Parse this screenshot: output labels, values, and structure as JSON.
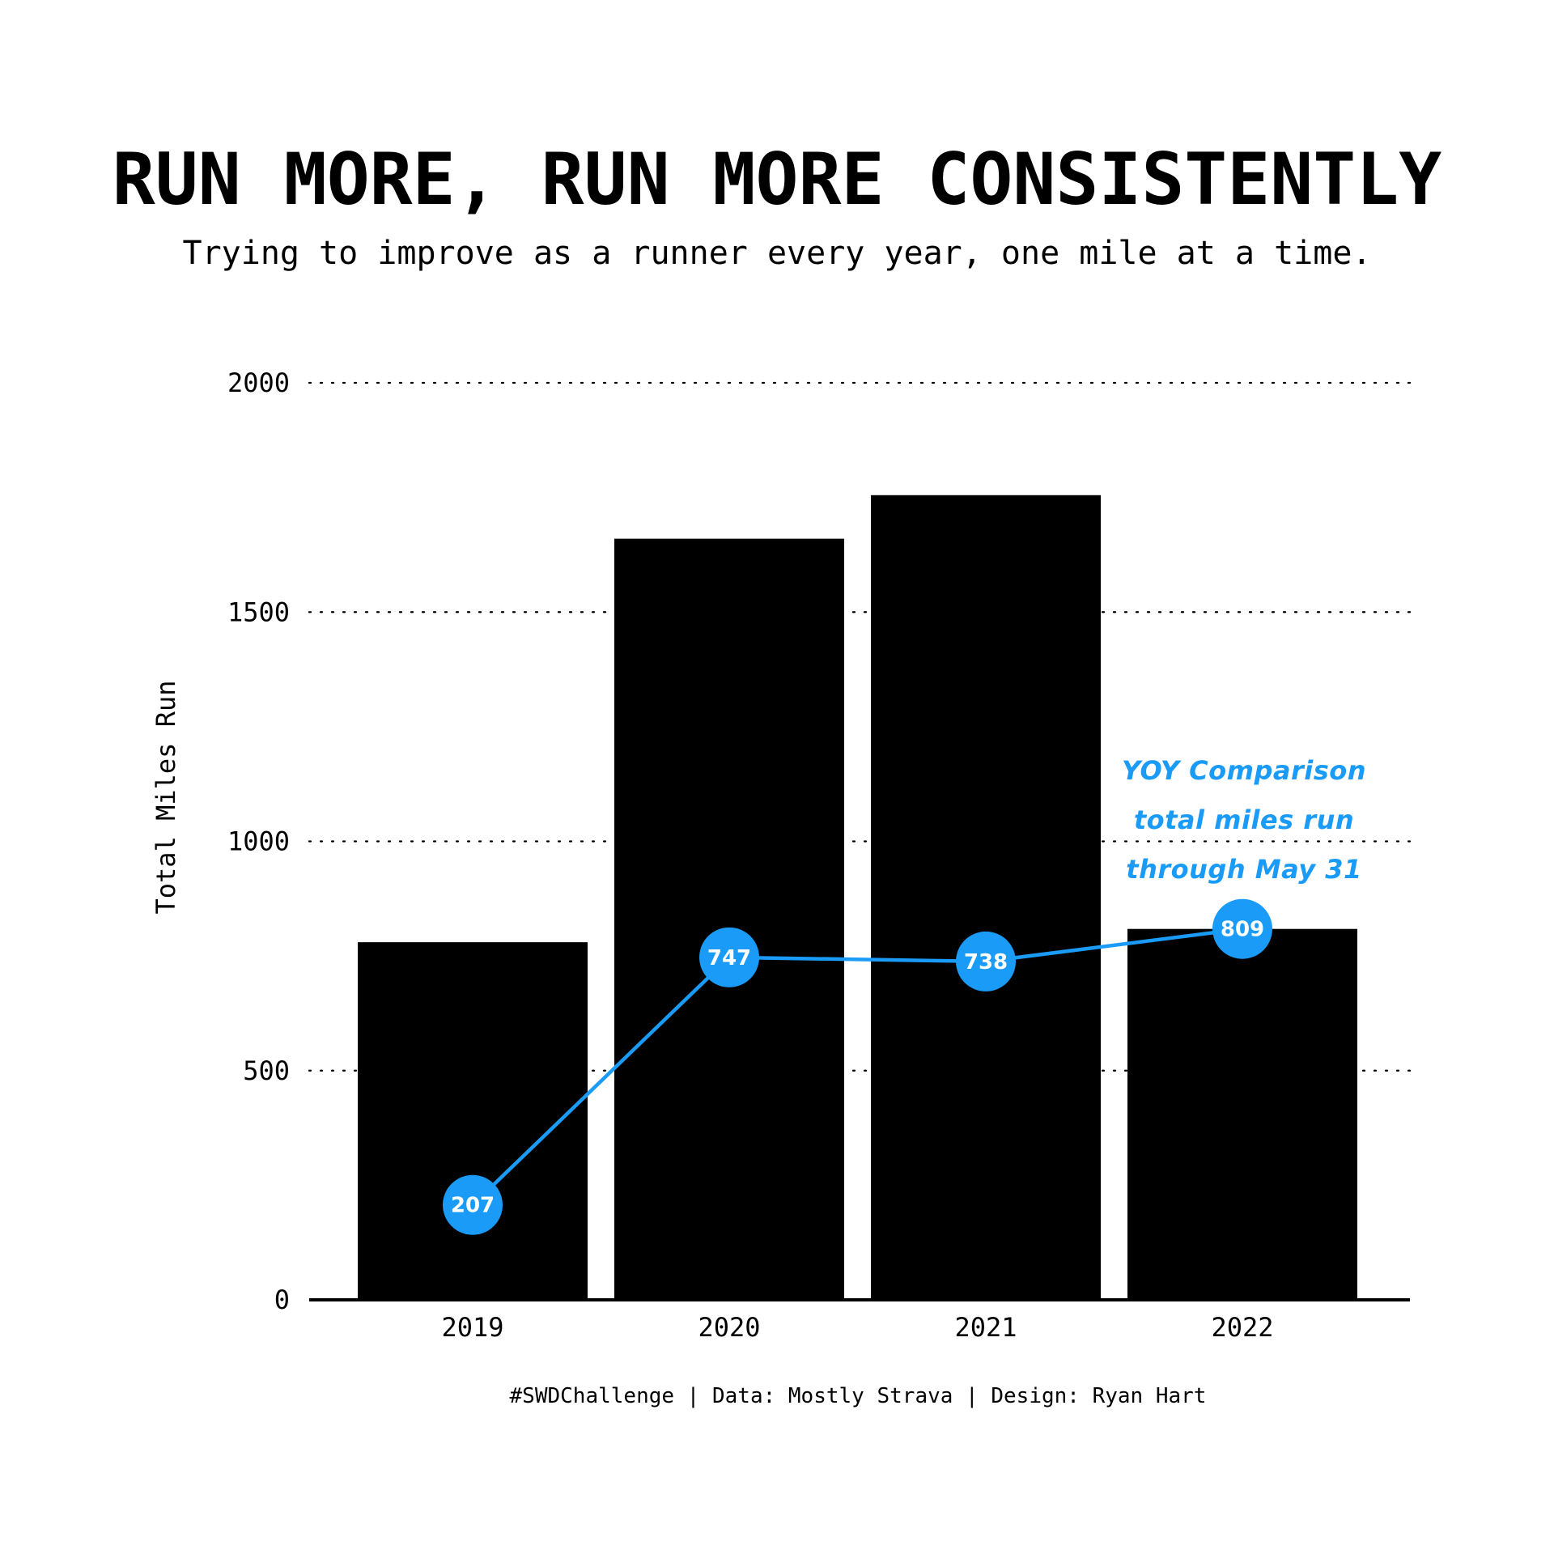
{
  "title": "RUN MORE, RUN MORE CONSISTENTLY",
  "subtitle": "Trying to improve as a runner every year, one mile at a time.",
  "caption": "#SWDChallenge | Data: Mostly Strava | Design: Ryan Hart",
  "colors": {
    "bar": "#000000",
    "accent": "#1a9bf7",
    "grid": "#000000",
    "background": "#ffffff"
  },
  "chart_data": {
    "type": "bar",
    "title": "RUN MORE, RUN MORE CONSISTENTLY",
    "subtitle": "Trying to improve as a runner every year, one mile at a time.",
    "xlabel": "",
    "ylabel": "Total Miles Run",
    "ylim": [
      0,
      2000
    ],
    "yticks": [
      0,
      500,
      1000,
      1500,
      2000
    ],
    "ytick_labels": [
      "0",
      "500",
      "1000",
      "1500",
      "2000"
    ],
    "grid": "horizontal dotted",
    "categories": [
      "2019",
      "2020",
      "2021",
      "2022"
    ],
    "series": [
      {
        "type": "bar",
        "values": [
          780,
          1660,
          1755,
          809
        ]
      },
      {
        "type": "line",
        "values": [
          207,
          747,
          738,
          809
        ],
        "labels": [
          "207",
          "747",
          "738",
          "809"
        ]
      }
    ],
    "annotation": {
      "lines": [
        "YOY Comparison",
        "total miles run",
        "through May 31"
      ]
    }
  }
}
